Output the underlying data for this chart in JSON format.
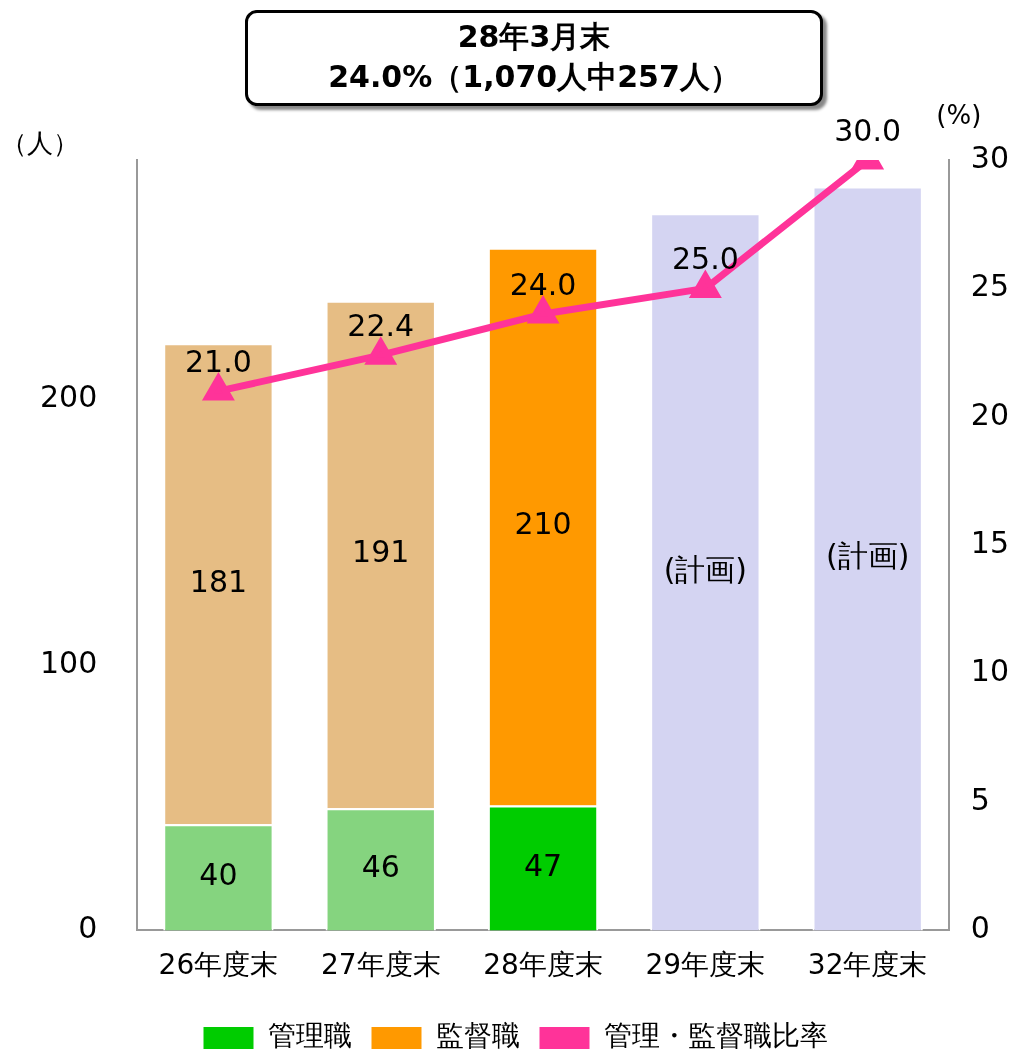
{
  "chart_data": {
    "type": "bar",
    "title": "28年3月末",
    "subtitle": "24.0%（1,070人中257人）",
    "ylabel": "（人）",
    "y2label": "(%)",
    "categories": [
      "26年度末",
      "27年度末",
      "28年度末",
      "29年度末",
      "32年度末"
    ],
    "stacked": true,
    "series": [
      {
        "name": "管理職",
        "color": "#00cc00",
        "colors": [
          "#85d47f",
          "#85d47f",
          "#00cc00",
          "#85d47f",
          "#85d47f"
        ],
        "values": [
          40,
          46,
          47,
          null,
          null
        ],
        "value_labels": [
          "40",
          "46",
          "47",
          null,
          null
        ]
      },
      {
        "name": "監督職",
        "color": "#ff9900",
        "colors": [
          "#e6bd84",
          "#e6bd84",
          "#ff9900",
          "#e6bd84",
          "#e6bd84"
        ],
        "values": [
          181,
          191,
          210,
          null,
          null
        ],
        "value_labels": [
          "181",
          "191",
          "210",
          null,
          null
        ]
      },
      {
        "color": "#d4d4f2",
        "values": [
          null,
          null,
          null,
          270,
          280
        ],
        "value_labels": [
          null,
          null,
          null,
          "(計画)",
          "(計画)"
        ]
      },
      {
        "name": "管理・監督職比率",
        "type": "line",
        "axis": "y2",
        "color": "#ff3399",
        "marker": "triangle",
        "values": [
          21.0,
          22.4,
          24.0,
          25.0,
          30.0
        ],
        "value_labels": [
          "21.0",
          "22.4",
          "24.0",
          "25.0",
          "30.0"
        ]
      }
    ],
    "ylim": [
      0,
      290
    ],
    "yticks": [
      0,
      100,
      200
    ],
    "y2lim": [
      0,
      30
    ],
    "y2ticks": [
      0,
      5,
      10,
      15,
      20,
      25,
      30
    ],
    "grid": false,
    "legend": "bottom"
  }
}
